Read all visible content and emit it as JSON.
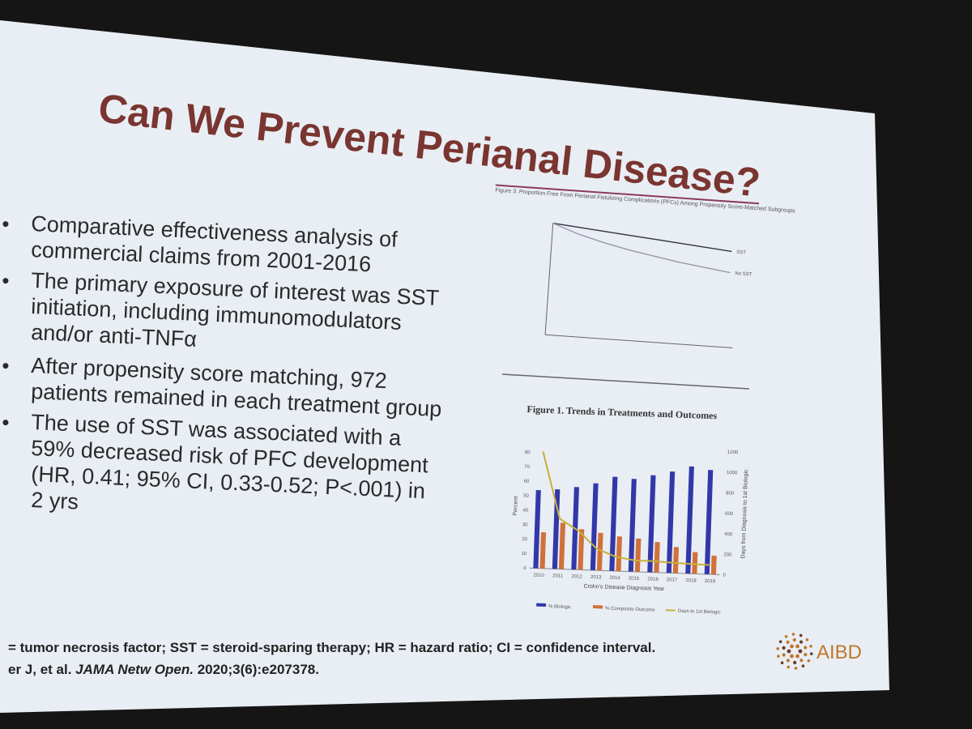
{
  "slide": {
    "title": "Can We Prevent Perianal Disease?",
    "bullets": [
      [
        "Comparative effectiveness analysis of",
        "commercial claims from 2001-2016"
      ],
      [
        "The primary exposure of interest was SST",
        "initiation, including immunomodulators",
        "and/or anti-TNFα"
      ],
      [
        "After propensity score matching, 972",
        "patients remained in each treatment group"
      ],
      [
        "The use of SST was associated with a",
        "59% decreased risk of PFC development",
        "(HR, 0.41; 95% CI, 0.33-0.52; P<.001) in",
        "2 yrs"
      ]
    ],
    "footnote_line1": "= tumor necrosis factor; SST = steroid-sparing therapy; HR = hazard ratio; CI = confidence interval.",
    "footnote_line2_prefix": "er J, et al.",
    "footnote_journal": "JAMA Netw Open.",
    "footnote_line2_suffix": "2020;3(6):e207378.",
    "logo_text": "AIBD",
    "colors": {
      "title": "#7a3530",
      "bar_biologic": "#3238a8",
      "bar_composite": "#d0713c",
      "line_days": "#c8b03a",
      "logo": "#c0772a"
    }
  },
  "chart_data": [
    {
      "type": "line",
      "title": "Figure 3. Proportion Free From Perianal Fistulizing Complications (PFCs) Among Propensity Score-Matched Subgroups",
      "ylim": [
        0,
        1.0
      ],
      "xlim": [
        0,
        730
      ],
      "series": [
        {
          "name": "SST",
          "x": [
            0,
            100,
            200,
            300,
            400,
            500,
            600,
            700
          ],
          "y": [
            1.0,
            0.98,
            0.96,
            0.94,
            0.92,
            0.9,
            0.88,
            0.86
          ]
        },
        {
          "name": "No SST",
          "x": [
            0,
            100,
            200,
            300,
            400,
            500,
            600,
            700
          ],
          "y": [
            1.0,
            0.92,
            0.86,
            0.81,
            0.77,
            0.73,
            0.7,
            0.67
          ]
        }
      ]
    },
    {
      "type": "bar",
      "title": "Figure 1. Trends in Treatments and Outcomes",
      "xlabel": "Crohn's Disease Diagnosis Year",
      "ylabel": "Percent",
      "y2label": "Days from Diagnosis to 1st Biologic",
      "ylim": [
        0,
        85
      ],
      "y2lim": [
        0,
        1200
      ],
      "yticks": [
        0,
        10,
        20,
        30,
        40,
        50,
        60,
        70,
        80
      ],
      "y2ticks": [
        0,
        200,
        400,
        600,
        800,
        1000,
        1200
      ],
      "categories": [
        "2010",
        "2011",
        "2012",
        "2013",
        "2014",
        "2015",
        "2016",
        "2017",
        "2018",
        "2019"
      ],
      "series": [
        {
          "name": "% Biologic",
          "kind": "bar",
          "values": [
            54,
            55,
            57,
            60,
            65,
            64,
            67,
            70,
            74,
            72
          ]
        },
        {
          "name": "% Composite Outcome",
          "kind": "bar",
          "values": [
            25,
            32,
            28,
            26,
            24,
            23,
            21,
            18,
            15,
            13
          ]
        },
        {
          "name": "Days to 1st Biologic",
          "kind": "line",
          "axis": "y2",
          "values": [
            1140,
            490,
            380,
            210,
            140,
            110,
            110,
            100,
            95,
            90
          ]
        }
      ]
    }
  ]
}
